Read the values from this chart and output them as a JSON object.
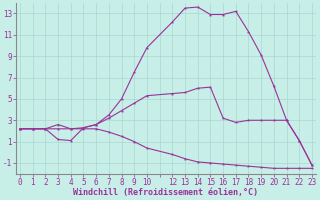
{
  "xlabel": "Windchill (Refroidissement éolien,°C)",
  "background_color": "#c8eee8",
  "grid_color": "#a8d8d0",
  "line_color": "#993399",
  "spine_color": "#888888",
  "x_positions": [
    0,
    1,
    2,
    3,
    4,
    5,
    6,
    7,
    8,
    9,
    10,
    11,
    12,
    13,
    14,
    15,
    16,
    17,
    18,
    19,
    20,
    21,
    22,
    23
  ],
  "x_tick_labels": [
    "0",
    "1",
    "2",
    "3",
    "4",
    "5",
    "6",
    "7",
    "8",
    "9",
    "10",
    "",
    "12",
    "13",
    "14",
    "15",
    "16",
    "17",
    "18",
    "19",
    "20",
    "21",
    "22",
    "23"
  ],
  "ylim": [
    -2.0,
    14.0
  ],
  "xlim": [
    -0.3,
    23.3
  ],
  "yticks": [
    -1,
    1,
    3,
    5,
    7,
    9,
    11,
    13
  ],
  "line1_x": [
    0,
    1,
    2,
    3,
    4,
    5,
    6,
    7,
    8,
    9,
    10,
    12,
    13,
    14,
    15,
    16,
    17,
    18,
    19,
    20,
    21,
    22,
    23
  ],
  "line1_y": [
    2.2,
    2.2,
    2.2,
    2.6,
    2.2,
    2.3,
    2.6,
    3.5,
    5.0,
    7.5,
    9.8,
    12.2,
    13.5,
    13.6,
    12.9,
    12.9,
    13.2,
    11.3,
    9.1,
    6.2,
    3.0,
    1.1,
    -1.2
  ],
  "line2_x": [
    0,
    1,
    2,
    3,
    4,
    5,
    6,
    7,
    8,
    9,
    10,
    12,
    13,
    14,
    15,
    16,
    17,
    18,
    19,
    20,
    21,
    22,
    23
  ],
  "line2_y": [
    2.2,
    2.2,
    2.2,
    1.2,
    1.1,
    2.3,
    2.6,
    3.2,
    3.9,
    4.6,
    5.3,
    5.5,
    5.6,
    6.0,
    6.1,
    3.2,
    2.8,
    3.0,
    3.0,
    3.0,
    3.0,
    1.1,
    -1.2
  ],
  "line3_x": [
    0,
    1,
    2,
    3,
    4,
    5,
    6,
    7,
    8,
    9,
    10,
    12,
    13,
    14,
    15,
    16,
    17,
    18,
    19,
    20,
    21,
    22,
    23
  ],
  "line3_y": [
    2.2,
    2.2,
    2.2,
    2.2,
    2.2,
    2.2,
    2.2,
    1.9,
    1.5,
    1.0,
    0.4,
    -0.2,
    -0.6,
    -0.9,
    -1.0,
    -1.1,
    -1.2,
    -1.3,
    -1.4,
    -1.5,
    -1.5,
    -1.5,
    -1.5
  ],
  "tick_fontsize": 5.5,
  "label_fontsize": 6.0,
  "linewidth": 0.8,
  "markersize": 2.5
}
